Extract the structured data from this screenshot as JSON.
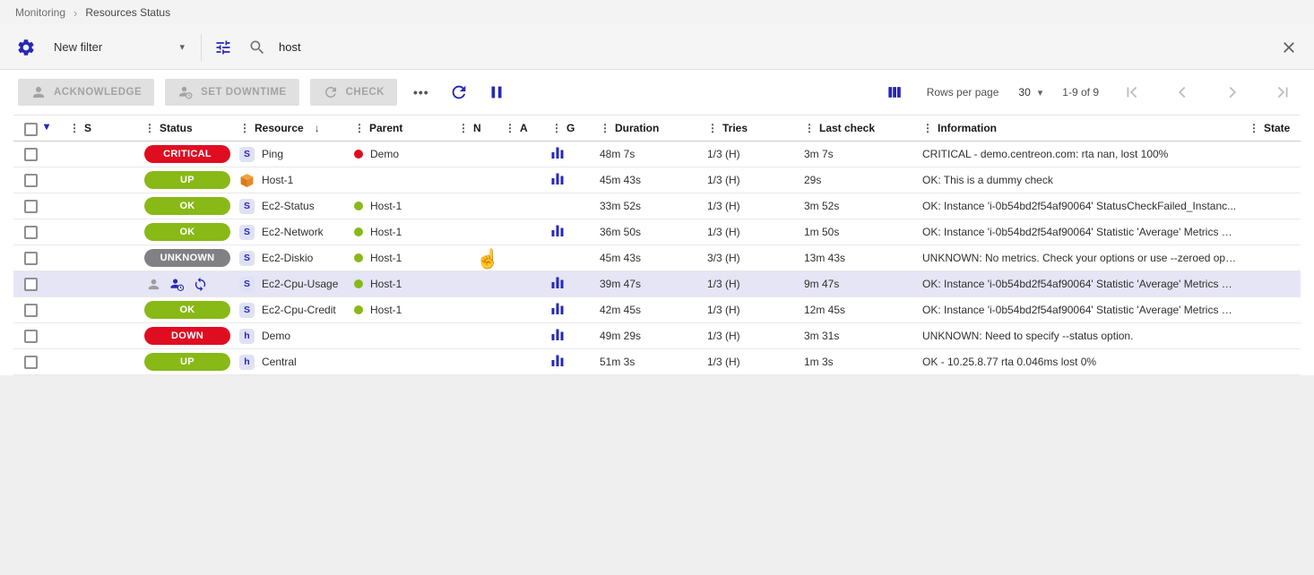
{
  "colors": {
    "accent": "#2727b8",
    "status_ok": "#88b917",
    "status_critical": "#e00d21",
    "status_unknown": "#818185",
    "row_highlight": "#e5e5f6",
    "host_icon": "#e8872b"
  },
  "breadcrumb": {
    "items": [
      "Monitoring",
      "Resources Status"
    ],
    "separator": "›"
  },
  "filter": {
    "preset_label": "New filter",
    "search_value": "host"
  },
  "toolbar": {
    "acknowledge_label": "ACKNOWLEDGE",
    "set_downtime_label": "SET DOWNTIME",
    "check_label": "CHECK",
    "more_label": "•••"
  },
  "pagination": {
    "rows_per_page_label": "Rows per page",
    "rows_per_page_value": "30",
    "range_label": "1-9 of 9"
  },
  "table": {
    "columns": [
      {
        "key": "severity",
        "label": "S"
      },
      {
        "key": "status",
        "label": "Status"
      },
      {
        "key": "resource",
        "label": "Resource",
        "sorted": "desc"
      },
      {
        "key": "parent",
        "label": "Parent"
      },
      {
        "key": "notification",
        "label": "N"
      },
      {
        "key": "ack",
        "label": "A"
      },
      {
        "key": "graph",
        "label": "G"
      },
      {
        "key": "duration",
        "label": "Duration"
      },
      {
        "key": "tries",
        "label": "Tries"
      },
      {
        "key": "last_check",
        "label": "Last check"
      },
      {
        "key": "information",
        "label": "Information"
      },
      {
        "key": "state",
        "label": "State"
      }
    ],
    "rows": [
      {
        "status": "CRITICAL",
        "status_kind": "critical",
        "badge": "S",
        "resource": "Ping",
        "parent": "Demo",
        "parent_kind": "critical",
        "graph": true,
        "duration": "48m 7s",
        "tries": "1/3 (H)",
        "last_check": "3m 7s",
        "information": "CRITICAL - demo.centreon.com: rta nan, lost 100%"
      },
      {
        "status": "UP",
        "status_kind": "ok",
        "badge": "cube",
        "resource": "Host-1",
        "parent": "",
        "graph": true,
        "duration": "45m 43s",
        "tries": "1/3 (H)",
        "last_check": "29s",
        "information": "OK: This is a dummy check"
      },
      {
        "status": "OK",
        "status_kind": "ok",
        "badge": "S",
        "resource": "Ec2-Status",
        "parent": "Host-1",
        "parent_kind": "ok",
        "graph": false,
        "duration": "33m 52s",
        "tries": "1/3 (H)",
        "last_check": "3m 52s",
        "information": "OK: Instance 'i-0b54bd2f54af90064' StatusCheckFailed_Instanc..."
      },
      {
        "status": "OK",
        "status_kind": "ok",
        "badge": "S",
        "resource": "Ec2-Network",
        "parent": "Host-1",
        "parent_kind": "ok",
        "graph": true,
        "duration": "36m 50s",
        "tries": "1/3 (H)",
        "last_check": "1m 50s",
        "information": "OK: Instance 'i-0b54bd2f54af90064' Statistic 'Average' Metrics N..."
      },
      {
        "status": "UNKNOWN",
        "status_kind": "unknown",
        "badge": "S",
        "resource": "Ec2-Diskio",
        "parent": "Host-1",
        "parent_kind": "ok",
        "graph": false,
        "duration": "45m 43s",
        "tries": "3/3 (H)",
        "last_check": "13m 43s",
        "information": "UNKNOWN: No metrics. Check your options or use --zeroed opti..."
      },
      {
        "status": "",
        "status_icons": [
          "acknowledged",
          "downtime",
          "sync"
        ],
        "badge": "S",
        "resource": "Ec2-Cpu-Usage",
        "parent": "Host-1",
        "parent_kind": "ok",
        "graph": true,
        "duration": "39m 47s",
        "tries": "1/3 (H)",
        "last_check": "9m 47s",
        "information": "OK: Instance 'i-0b54bd2f54af90064' Statistic 'Average' Metrics C...",
        "highlighted": true
      },
      {
        "status": "OK",
        "status_kind": "ok",
        "badge": "S",
        "resource": "Ec2-Cpu-Credit",
        "parent": "Host-1",
        "parent_kind": "ok",
        "graph": true,
        "duration": "42m 45s",
        "tries": "1/3 (H)",
        "last_check": "12m 45s",
        "information": "OK: Instance 'i-0b54bd2f54af90064' Statistic 'Average' Metrics C..."
      },
      {
        "status": "DOWN",
        "status_kind": "critical",
        "badge": "h",
        "resource": "Demo",
        "parent": "",
        "graph": true,
        "duration": "49m 29s",
        "tries": "1/3 (H)",
        "last_check": "3m 31s",
        "information": "UNKNOWN: Need to specify --status option."
      },
      {
        "status": "UP",
        "status_kind": "ok",
        "badge": "h",
        "resource": "Central",
        "parent": "",
        "graph": true,
        "duration": "51m 3s",
        "tries": "1/3 (H)",
        "last_check": "1m 3s",
        "information": "OK - 10.25.8.77 rta 0.046ms lost 0%"
      }
    ]
  }
}
